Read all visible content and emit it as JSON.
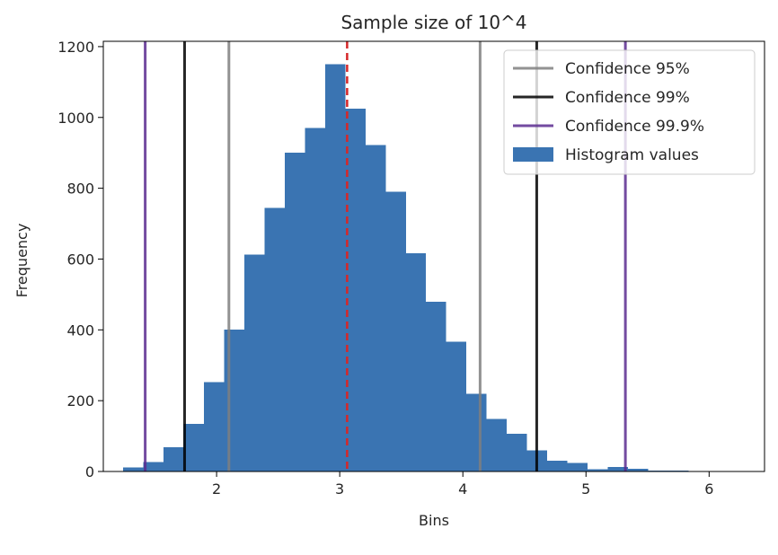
{
  "chart_data": {
    "type": "bar",
    "title": "Sample size of 10^4",
    "xlabel": "Bins",
    "ylabel": "Frequency",
    "xlim": [
      1.08,
      6.45
    ],
    "ylim": [
      0,
      1215
    ],
    "xticks": [
      2,
      3,
      4,
      5,
      6
    ],
    "yticks": [
      0,
      200,
      400,
      600,
      800,
      1000,
      1200
    ],
    "grid": false,
    "legend_position": "top-right",
    "histogram": {
      "name": "Histogram values",
      "color": "#3a74b2",
      "bin_edges": [
        1.241,
        1.405,
        1.569,
        1.733,
        1.897,
        2.061,
        2.225,
        2.389,
        2.553,
        2.717,
        2.881,
        3.045,
        3.209,
        3.373,
        3.537,
        3.701,
        3.865,
        4.029,
        4.193,
        4.357,
        4.521,
        4.685,
        4.849,
        5.013,
        5.177,
        5.341,
        5.505,
        5.669,
        5.833,
        5.997,
        6.161,
        6.325
      ],
      "counts": [
        12,
        27,
        68,
        135,
        252,
        401,
        612,
        745,
        900,
        970,
        1150,
        1025,
        922,
        790,
        617,
        480,
        367,
        219,
        148,
        106,
        59,
        30,
        24,
        6,
        13,
        8,
        3,
        2,
        1,
        1,
        1
      ]
    },
    "mean_line": {
      "x": 3.06,
      "color": "#d62728",
      "style": "dashed"
    },
    "confidence_lines": [
      {
        "name": "Confidence 95%",
        "x": [
          2.1,
          4.14
        ],
        "color": "#7f7f7f"
      },
      {
        "name": "Confidence 99%",
        "x": [
          1.74,
          4.6
        ],
        "color": "#000000"
      },
      {
        "name": "Confidence 99.9%",
        "x": [
          1.42,
          5.32
        ],
        "color": "#5b2c8f"
      }
    ]
  }
}
